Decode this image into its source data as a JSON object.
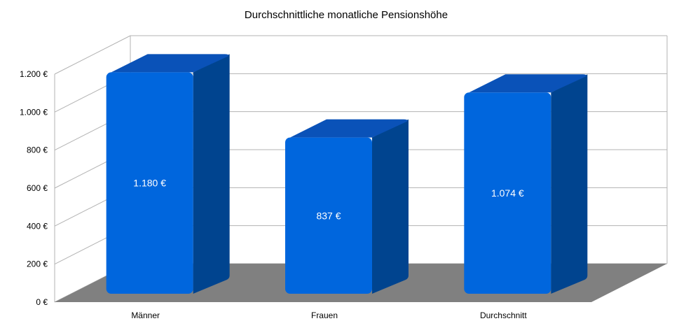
{
  "chart_data": {
    "type": "bar",
    "title": "Durchschnittliche monatliche Pensionshöhe",
    "categories": [
      "Männer",
      "Frauen",
      "Durchschnitt"
    ],
    "values": [
      1180,
      837,
      1074
    ],
    "data_labels": [
      "1.180 €",
      "837 €",
      "1.074 €"
    ],
    "yticks": [
      0,
      200,
      400,
      600,
      800,
      1000,
      1200
    ],
    "ytick_labels": [
      "0 €",
      "200 €",
      "400 €",
      "600 €",
      "800 €",
      "1.000 €",
      "1.200 €"
    ],
    "ylim": [
      0,
      1200
    ],
    "grid": true,
    "legend": "none",
    "colors": {
      "bar_front": "#0066dd",
      "bar_side": "#00448f",
      "bar_top": "#0a52b8",
      "floor": "#808080",
      "grid": "#b3b3b3"
    }
  }
}
